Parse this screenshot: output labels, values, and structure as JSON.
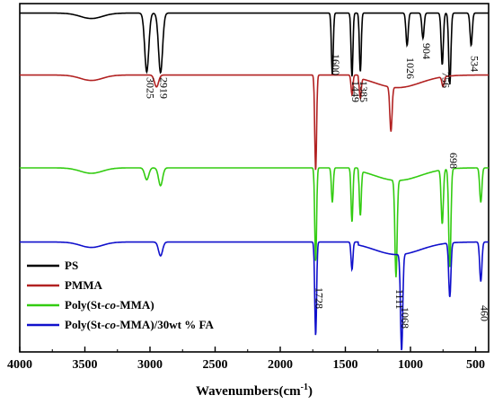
{
  "chart_data": {
    "type": "line",
    "title": "",
    "xlabel": "Wavenumbers(cm",
    "xlabel_sup": "-1",
    "xlabel_tail": ")",
    "ylabel": "",
    "xlim": [
      4000,
      400
    ],
    "x_reversed": true,
    "x_ticks": [
      "4000",
      "3500",
      "3000",
      "2500",
      "2000",
      "1500",
      "1000",
      "500"
    ],
    "x_tick_values": [
      4000,
      3500,
      3000,
      2500,
      2000,
      1500,
      1000,
      500
    ],
    "y_ticks_shown": false,
    "legend_position": "bottom-left",
    "series": [
      {
        "name": "PS",
        "legend_parts": [
          {
            "t": "PS",
            "i": false
          }
        ],
        "color": "#000000",
        "baseline": 0.97,
        "peaks": [
          [
            3025,
            0.82
          ],
          [
            2919,
            0.83
          ],
          [
            1600,
            0.86
          ],
          [
            1449,
            0.89
          ],
          [
            1385,
            0.82
          ],
          [
            1026,
            0.45
          ],
          [
            904,
            0.35
          ],
          [
            756,
            0.72
          ],
          [
            698,
            1.0
          ],
          [
            534,
            0.45
          ]
        ]
      },
      {
        "name": "PMMA",
        "legend_parts": [
          {
            "t": "PMMA",
            "i": false
          }
        ],
        "color": "#b22222",
        "baseline": 0.72,
        "peaks": [
          [
            2950,
            0.12
          ],
          [
            1728,
            0.97
          ],
          [
            1449,
            0.2
          ],
          [
            1385,
            0.2
          ],
          [
            1150,
            0.45
          ],
          [
            750,
            0.1
          ]
        ]
      },
      {
        "name": "Poly(St-co-MMA)",
        "legend_parts": [
          {
            "t": "Poly(St-",
            "i": false
          },
          {
            "t": "co",
            "i": true
          },
          {
            "t": "-MMA)",
            "i": false
          }
        ],
        "color": "#33cc11",
        "baseline": 0.55,
        "peaks": [
          [
            3025,
            0.12
          ],
          [
            2919,
            0.18
          ],
          [
            1728,
            0.95
          ],
          [
            1600,
            0.35
          ],
          [
            1449,
            0.55
          ],
          [
            1385,
            0.45
          ],
          [
            1111,
            0.98
          ],
          [
            756,
            0.55
          ],
          [
            698,
            1.0
          ],
          [
            460,
            0.35
          ]
        ]
      },
      {
        "name": "Poly(St-co-MMA)/30wt % FA",
        "legend_parts": [
          {
            "t": "Poly(St-",
            "i": false
          },
          {
            "t": "co",
            "i": true
          },
          {
            "t": "-MMA)/30wt % FA",
            "i": false
          }
        ],
        "color": "#1010cc",
        "baseline": 0.42,
        "peaks": [
          [
            2919,
            0.14
          ],
          [
            1728,
            0.95
          ],
          [
            1449,
            0.28
          ],
          [
            1068,
            0.98
          ],
          [
            698,
            0.55
          ],
          [
            460,
            0.4
          ]
        ]
      }
    ],
    "annotations": [
      {
        "text": "3025",
        "x": 3025
      },
      {
        "text": "2919",
        "x": 2919
      },
      {
        "text": "1600",
        "x": 1600
      },
      {
        "text": "1449",
        "x": 1449
      },
      {
        "text": "1385",
        "x": 1385
      },
      {
        "text": "1026",
        "x": 1026
      },
      {
        "text": "904",
        "x": 904
      },
      {
        "text": "756",
        "x": 756
      },
      {
        "text": "534",
        "x": 534
      },
      {
        "text": "698",
        "x": 698
      },
      {
        "text": "1728",
        "x": 1728
      },
      {
        "text": "1111",
        "x": 1111
      },
      {
        "text": "1068",
        "x": 1068
      },
      {
        "text": "460",
        "x": 460
      }
    ]
  }
}
